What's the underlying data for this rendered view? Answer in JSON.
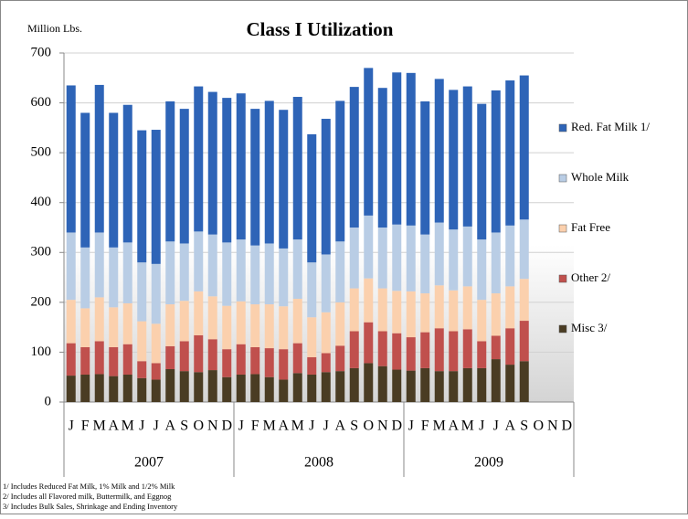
{
  "chart_data": {
    "type": "stacked-bar",
    "title": "Class I Utilization",
    "y_label": "Million Lbs.",
    "categories": [
      "J",
      "F",
      "M",
      "A",
      "M",
      "J",
      "J",
      "A",
      "S",
      "O",
      "N",
      "D",
      "J",
      "F",
      "M",
      "A",
      "M",
      "J",
      "J",
      "A",
      "S",
      "O",
      "N",
      "D",
      "J",
      "F",
      "M",
      "A",
      "M",
      "J",
      "J",
      "A",
      "S",
      "O",
      "N",
      "D"
    ],
    "groups": [
      "2007",
      "2008",
      "2009"
    ],
    "ylim": [
      0,
      700
    ],
    "yticks": [
      0,
      100,
      200,
      300,
      400,
      500,
      600,
      700
    ],
    "grid": true,
    "legend": "right",
    "series": [
      {
        "name": "Misc 3/",
        "color": "#4a3c23",
        "values": [
          53,
          55,
          56,
          52,
          55,
          48,
          45,
          66,
          62,
          60,
          64,
          50,
          55,
          56,
          50,
          45,
          58,
          55,
          60,
          62,
          68,
          78,
          72,
          65,
          63,
          68,
          62,
          62,
          68,
          68,
          86,
          75,
          82,
          null,
          null,
          null
        ]
      },
      {
        "name": "Other 2/",
        "color": "#c0504d",
        "values": [
          65,
          55,
          66,
          58,
          61,
          34,
          33,
          46,
          60,
          74,
          62,
          56,
          61,
          54,
          58,
          61,
          60,
          35,
          38,
          51,
          74,
          82,
          70,
          73,
          67,
          72,
          86,
          80,
          78,
          54,
          47,
          73,
          81,
          null,
          null,
          null
        ]
      },
      {
        "name": "Fat Free",
        "color": "#fbd0ad",
        "values": [
          87,
          78,
          88,
          80,
          82,
          80,
          79,
          84,
          81,
          88,
          86,
          87,
          86,
          86,
          88,
          86,
          89,
          80,
          82,
          87,
          86,
          88,
          86,
          85,
          92,
          78,
          86,
          82,
          86,
          83,
          85,
          84,
          84,
          null,
          null,
          null
        ]
      },
      {
        "name": "Whole Milk",
        "color": "#b9cde5",
        "values": [
          135,
          122,
          130,
          120,
          122,
          118,
          120,
          126,
          115,
          120,
          124,
          127,
          124,
          118,
          122,
          116,
          119,
          110,
          116,
          122,
          122,
          126,
          122,
          133,
          132,
          118,
          126,
          122,
          120,
          121,
          122,
          122,
          119,
          null,
          null,
          null
        ]
      },
      {
        "name": "Red. Fat Milk 1/",
        "color": "#2e64b7",
        "values": [
          295,
          270,
          296,
          270,
          276,
          265,
          269,
          281,
          270,
          291,
          286,
          290,
          293,
          274,
          286,
          278,
          286,
          257,
          272,
          282,
          282,
          296,
          280,
          305,
          306,
          267,
          288,
          280,
          281,
          272,
          285,
          291,
          289,
          null,
          null,
          null
        ]
      }
    ],
    "footnotes": [
      "1/ Includes Reduced Fat Milk, 1% Milk and 1/2% Milk",
      "2/ Includes all Flavored milk, Buttermilk, and Eggnog",
      "3/ Includes Bulk Sales, Shrinkage and Ending Inventory"
    ]
  }
}
